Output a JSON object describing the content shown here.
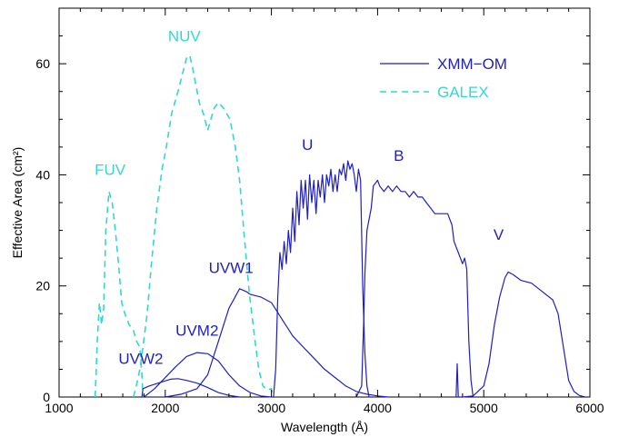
{
  "chart_data": {
    "type": "line",
    "xlabel": "Wavelength (Å)",
    "ylabel": "Effective Area (cm²)",
    "xlim": [
      1000,
      6000
    ],
    "ylim": [
      0,
      70
    ],
    "x_ticks": [
      1000,
      2000,
      3000,
      4000,
      5000,
      6000
    ],
    "y_ticks": [
      0,
      20,
      40,
      60
    ],
    "grid": false,
    "legend_placement": "top-right",
    "colors": {
      "xmm": "#1f1fbf",
      "galex": "#33d6d6",
      "axis": "#000000"
    },
    "series": [
      {
        "name": "XMM−OM",
        "style": "solid",
        "color": "#1f1fbf"
      },
      {
        "name": "GALEX",
        "style": "dashed",
        "color": "#33d6d6"
      }
    ],
    "curves": [
      {
        "series": "GALEX",
        "band": "FUV",
        "label_at": [
          1480,
          40
        ],
        "points": [
          [
            1340,
            0
          ],
          [
            1360,
            10
          ],
          [
            1380,
            17
          ],
          [
            1400,
            13
          ],
          [
            1420,
            16
          ],
          [
            1440,
            30
          ],
          [
            1470,
            37
          ],
          [
            1500,
            35
          ],
          [
            1530,
            30
          ],
          [
            1560,
            24
          ],
          [
            1590,
            17
          ],
          [
            1620,
            15
          ],
          [
            1660,
            13
          ],
          [
            1700,
            12
          ],
          [
            1730,
            10
          ],
          [
            1760,
            9
          ],
          [
            1780,
            4
          ],
          [
            1790,
            0
          ]
        ]
      },
      {
        "series": "GALEX",
        "band": "NUV",
        "label_at": [
          2180,
          64
        ],
        "points": [
          [
            1700,
            0
          ],
          [
            1740,
            3
          ],
          [
            1760,
            5
          ],
          [
            1790,
            9
          ],
          [
            1830,
            15
          ],
          [
            1870,
            24
          ],
          [
            1920,
            34
          ],
          [
            1970,
            41
          ],
          [
            2010,
            45
          ],
          [
            2060,
            51
          ],
          [
            2120,
            55
          ],
          [
            2160,
            58
          ],
          [
            2200,
            61
          ],
          [
            2230,
            61.5
          ],
          [
            2260,
            59
          ],
          [
            2290,
            56
          ],
          [
            2320,
            53
          ],
          [
            2360,
            51
          ],
          [
            2400,
            48
          ],
          [
            2430,
            50
          ],
          [
            2460,
            52
          ],
          [
            2500,
            53
          ],
          [
            2550,
            52
          ],
          [
            2610,
            50
          ],
          [
            2660,
            45
          ],
          [
            2700,
            39
          ],
          [
            2740,
            30
          ],
          [
            2790,
            19
          ],
          [
            2840,
            11
          ],
          [
            2880,
            5
          ],
          [
            2920,
            2
          ],
          [
            2960,
            1.3
          ],
          [
            3000,
            1.5
          ],
          [
            3010,
            0.3
          ]
        ]
      },
      {
        "series": "XMM−OM",
        "band": "UVW2",
        "label_at": [
          1770,
          6
        ],
        "points": [
          [
            1780,
            0
          ],
          [
            1790,
            1.5
          ],
          [
            1850,
            2
          ],
          [
            1950,
            2.6
          ],
          [
            2050,
            3.2
          ],
          [
            2120,
            3.3
          ],
          [
            2200,
            3
          ],
          [
            2300,
            2.5
          ],
          [
            2400,
            1.7
          ],
          [
            2500,
            0.8
          ],
          [
            2600,
            0.3
          ],
          [
            2700,
            0
          ]
        ]
      },
      {
        "series": "XMM−OM",
        "band": "UVM2",
        "label_at": [
          2300,
          11
        ],
        "points": [
          [
            1800,
            0
          ],
          [
            1900,
            1.5
          ],
          [
            2000,
            3.5
          ],
          [
            2100,
            5.5
          ],
          [
            2200,
            7.3
          ],
          [
            2300,
            8
          ],
          [
            2400,
            7.8
          ],
          [
            2500,
            6.5
          ],
          [
            2600,
            4
          ],
          [
            2700,
            2
          ],
          [
            2800,
            0.8
          ],
          [
            2900,
            0.2
          ],
          [
            3000,
            0
          ]
        ]
      },
      {
        "series": "XMM−OM",
        "band": "UVW1",
        "label_at": [
          2620,
          22.3
        ],
        "points": [
          [
            2000,
            0
          ],
          [
            2150,
            0.5
          ],
          [
            2300,
            1.5
          ],
          [
            2400,
            4
          ],
          [
            2500,
            10
          ],
          [
            2600,
            16
          ],
          [
            2700,
            19.5
          ],
          [
            2760,
            19
          ],
          [
            2800,
            18.5
          ],
          [
            2900,
            18
          ],
          [
            3000,
            17
          ],
          [
            3100,
            14
          ],
          [
            3200,
            11
          ],
          [
            3300,
            9
          ],
          [
            3400,
            7
          ],
          [
            3500,
            5
          ],
          [
            3600,
            3.5
          ],
          [
            3700,
            2
          ],
          [
            3800,
            1
          ],
          [
            3900,
            0.5
          ],
          [
            4000,
            0.2
          ],
          [
            4100,
            0
          ]
        ]
      },
      {
        "series": "XMM−OM",
        "band": "U",
        "label_at": [
          3340,
          44.5
        ],
        "points": [
          [
            3020,
            0
          ],
          [
            3040,
            5
          ],
          [
            3060,
            18
          ],
          [
            3080,
            26
          ],
          [
            3100,
            23
          ],
          [
            3120,
            28
          ],
          [
            3140,
            24
          ],
          [
            3160,
            30
          ],
          [
            3180,
            26
          ],
          [
            3200,
            34
          ],
          [
            3220,
            28
          ],
          [
            3240,
            37
          ],
          [
            3260,
            31
          ],
          [
            3280,
            39
          ],
          [
            3300,
            34
          ],
          [
            3320,
            39
          ],
          [
            3340,
            32
          ],
          [
            3360,
            40
          ],
          [
            3380,
            35
          ],
          [
            3400,
            39
          ],
          [
            3420,
            33
          ],
          [
            3440,
            39
          ],
          [
            3460,
            36
          ],
          [
            3480,
            40
          ],
          [
            3500,
            35
          ],
          [
            3520,
            40
          ],
          [
            3540,
            38
          ],
          [
            3560,
            41
          ],
          [
            3580,
            37
          ],
          [
            3600,
            40
          ],
          [
            3620,
            37
          ],
          [
            3640,
            41
          ],
          [
            3660,
            40
          ],
          [
            3680,
            42
          ],
          [
            3700,
            39
          ],
          [
            3720,
            42.5
          ],
          [
            3740,
            41
          ],
          [
            3760,
            42
          ],
          [
            3780,
            40
          ],
          [
            3800,
            37
          ],
          [
            3820,
            41
          ],
          [
            3840,
            39
          ],
          [
            3860,
            20
          ],
          [
            3880,
            8
          ],
          [
            3900,
            2
          ],
          [
            3920,
            0
          ]
        ]
      },
      {
        "series": "XMM−OM",
        "band": "B",
        "label_at": [
          4200,
          42.5
        ],
        "points": [
          [
            3800,
            0
          ],
          [
            3850,
            2
          ],
          [
            3870,
            14
          ],
          [
            3880,
            22
          ],
          [
            3900,
            30
          ],
          [
            3940,
            34
          ],
          [
            3960,
            38
          ],
          [
            4000,
            39
          ],
          [
            4020,
            38
          ],
          [
            4060,
            37
          ],
          [
            4100,
            38
          ],
          [
            4140,
            37
          ],
          [
            4180,
            38
          ],
          [
            4220,
            37
          ],
          [
            4260,
            37
          ],
          [
            4300,
            36
          ],
          [
            4340,
            37
          ],
          [
            4380,
            36
          ],
          [
            4420,
            36
          ],
          [
            4460,
            35
          ],
          [
            4500,
            34
          ],
          [
            4540,
            33
          ],
          [
            4580,
            33
          ],
          [
            4620,
            33
          ],
          [
            4660,
            33
          ],
          [
            4700,
            31
          ],
          [
            4720,
            28
          ],
          [
            4760,
            26
          ],
          [
            4780,
            25
          ],
          [
            4800,
            24
          ],
          [
            4820,
            25
          ],
          [
            4840,
            23
          ],
          [
            4860,
            10
          ],
          [
            4880,
            3
          ],
          [
            4900,
            0
          ]
        ]
      },
      {
        "series": "XMM−OM",
        "band": "V",
        "label_at": [
          5140,
          28.3
        ],
        "points": [
          [
            4740,
            0
          ],
          [
            4750,
            6
          ],
          [
            4760,
            0
          ],
          [
            4800,
            0
          ],
          [
            4900,
            0.2
          ],
          [
            5000,
            2
          ],
          [
            5050,
            6
          ],
          [
            5100,
            13
          ],
          [
            5150,
            18
          ],
          [
            5200,
            21.5
          ],
          [
            5230,
            22.5
          ],
          [
            5280,
            22
          ],
          [
            5350,
            21
          ],
          [
            5450,
            20.5
          ],
          [
            5550,
            19
          ],
          [
            5650,
            17.5
          ],
          [
            5700,
            15
          ],
          [
            5750,
            9
          ],
          [
            5800,
            3
          ],
          [
            5850,
            1
          ],
          [
            5900,
            0.3
          ],
          [
            5950,
            0
          ]
        ]
      }
    ]
  }
}
